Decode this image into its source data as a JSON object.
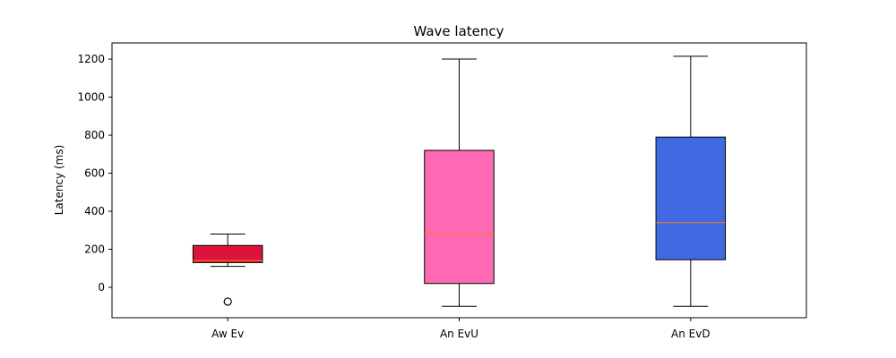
{
  "chart_data": {
    "type": "boxplot",
    "title": "Wave latency",
    "xlabel": "",
    "ylabel": "Latency (ms)",
    "ylim": [
      -160,
      1285
    ],
    "yticks": [
      0,
      200,
      400,
      600,
      800,
      1000,
      1200
    ],
    "grid": false,
    "categories": [
      "Aw Ev",
      "An EvU",
      "An EvD"
    ],
    "boxes": [
      {
        "label": "Aw Ev",
        "color": "#dc143c",
        "whisker_low": 110,
        "q1": 130,
        "median": 140,
        "q3": 220,
        "whisker_high": 280,
        "outliers": [
          -75
        ]
      },
      {
        "label": "An EvU",
        "color": "#ff69b4",
        "whisker_low": -100,
        "q1": 20,
        "median": 280,
        "q3": 720,
        "whisker_high": 1200,
        "outliers": []
      },
      {
        "label": "An EvD",
        "color": "#4169e1",
        "whisker_low": -100,
        "q1": 145,
        "median": 340,
        "q3": 790,
        "whisker_high": 1215,
        "outliers": []
      }
    ],
    "median_color": "#ff7f0e"
  }
}
